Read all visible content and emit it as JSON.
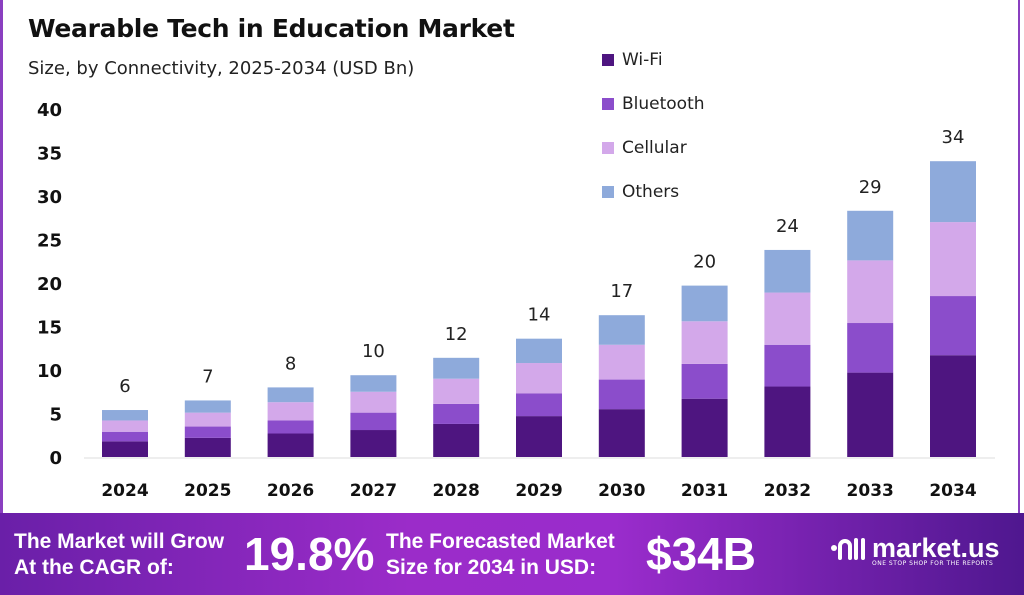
{
  "chart_data": {
    "type": "bar",
    "stacked": true,
    "title": "Wearable Tech in Education Market",
    "subtitle": "Size, by Connectivity, 2025-2034 (USD Bn)",
    "categories": [
      "2024",
      "2025",
      "2026",
      "2027",
      "2028",
      "2029",
      "2030",
      "2031",
      "2032",
      "2033",
      "2034"
    ],
    "series": [
      {
        "name": "Wi-Fi",
        "color": "#4e1580",
        "values": [
          1.8,
          2.2,
          2.7,
          3.1,
          3.8,
          4.7,
          5.5,
          6.7,
          8.1,
          9.7,
          11.7
        ]
      },
      {
        "name": "Bluetooth",
        "color": "#8b4dcb",
        "values": [
          1.1,
          1.3,
          1.5,
          2.0,
          2.3,
          2.6,
          3.4,
          4.0,
          4.8,
          5.7,
          6.8
        ]
      },
      {
        "name": "Cellular",
        "color": "#d3a8ea",
        "values": [
          1.3,
          1.6,
          2.1,
          2.4,
          2.9,
          3.5,
          4.0,
          4.9,
          6.0,
          7.2,
          8.5
        ]
      },
      {
        "name": "Others",
        "color": "#8eaadb",
        "values": [
          1.2,
          1.4,
          1.7,
          1.9,
          2.4,
          2.8,
          3.4,
          4.1,
          4.9,
          5.7,
          7.0
        ]
      }
    ],
    "totals_labels": [
      "6",
      "7",
      "8",
      "10",
      "12",
      "14",
      "17",
      "20",
      "24",
      "29",
      "34"
    ],
    "yticks": [
      "0",
      "5",
      "10",
      "15",
      "20",
      "25",
      "30",
      "35",
      "40"
    ],
    "ylim": [
      0,
      40
    ],
    "grid": false,
    "legend_position": "top-right"
  },
  "footer": {
    "cagr_text_1": "The Market will Grow",
    "cagr_text_2": "At the CAGR of:",
    "cagr_value": "19.8%",
    "forecast_text_1": "The Forecasted Market",
    "forecast_text_2": "Size for 2034 in USD:",
    "forecast_value": "$34B",
    "logo_name": "market.us",
    "logo_tagline": "ONE STOP SHOP FOR THE REPORTS"
  }
}
